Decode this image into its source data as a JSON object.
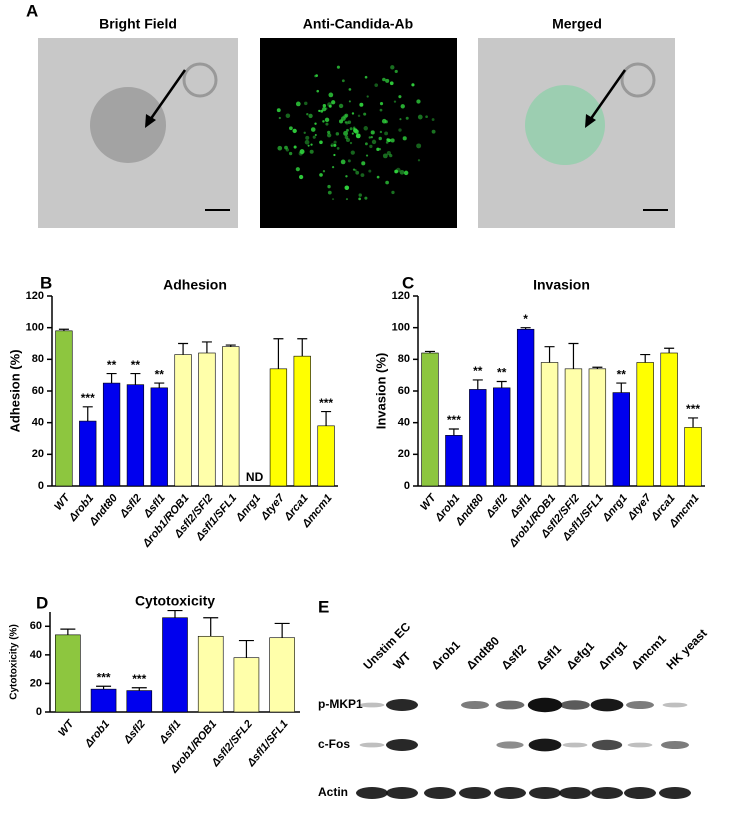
{
  "panels": {
    "A": {
      "label": "A",
      "images": [
        "Bright Field",
        "Anti-Candida-Ab",
        "Merged"
      ]
    },
    "E": {
      "label": "E",
      "columns": [
        "Unstim EC",
        "WT",
        "Δrob1",
        "Δndt80",
        "Δsfl2",
        "Δsfl1",
        "Δefg1",
        "Δnrg1",
        "Δmcm1",
        "HK yeast"
      ],
      "rows": [
        "p-MKP1",
        "c-Fos",
        "Actin"
      ]
    }
  },
  "chart_data": [
    {
      "panel": "B",
      "type": "bar",
      "title": "Adhesion",
      "y_label": "Adhesion (%)",
      "categories": [
        "WT",
        "Δrob1",
        "Δndt80",
        "Δsfl2",
        "Δsfl1",
        "Δrob1/ROB1",
        "Δsfl2/SFl2",
        "Δsfl1/SFL1",
        "Δnrg1",
        "Δtye7",
        "Δrca1",
        "Δmcm1"
      ],
      "values": [
        98,
        41,
        65,
        64,
        62,
        83,
        84,
        88,
        null,
        74,
        82,
        38
      ],
      "errors": [
        1,
        9,
        6,
        7,
        3,
        7,
        7,
        1,
        null,
        19,
        11,
        9
      ],
      "colors": [
        "#8dc63f",
        "#0000ee",
        "#0000ee",
        "#0000ee",
        "#0000ee",
        "#ffffaa",
        "#ffffaa",
        "#ffffaa",
        null,
        "#ffff00",
        "#ffff00",
        "#ffff00"
      ],
      "annotations": [
        null,
        "***",
        "**",
        "**",
        "**",
        null,
        null,
        null,
        "ND",
        null,
        null,
        "***"
      ],
      "ylim": [
        0,
        120
      ],
      "yticks": [
        0,
        20,
        40,
        60,
        80,
        100,
        120
      ]
    },
    {
      "panel": "C",
      "type": "bar",
      "title": "Invasion",
      "y_label": "Invasion (%)",
      "categories": [
        "WT",
        "Δrob1",
        "Δndt80",
        "Δsfl2",
        "Δsfl1",
        "Δrob1/ROB1",
        "Δsfl2/SFl2",
        "Δsfl1/SFL1",
        "Δnrg1",
        "Δtye7",
        "Δrca1",
        "Δmcm1"
      ],
      "values": [
        84,
        32,
        61,
        62,
        99,
        78,
        74,
        74,
        59,
        78,
        84,
        37
      ],
      "errors": [
        1,
        4,
        6,
        4,
        1,
        10,
        16,
        1,
        6,
        5,
        3,
        6
      ],
      "colors": [
        "#8dc63f",
        "#0000ee",
        "#0000ee",
        "#0000ee",
        "#0000ee",
        "#ffffaa",
        "#ffffaa",
        "#ffffaa",
        "#0000ee",
        "#ffff00",
        "#ffff00",
        "#ffff00"
      ],
      "annotations": [
        null,
        "***",
        "**",
        "**",
        "*",
        null,
        null,
        null,
        "**",
        null,
        null,
        "***"
      ],
      "ylim": [
        0,
        120
      ],
      "yticks": [
        0,
        20,
        40,
        60,
        80,
        100,
        120
      ]
    },
    {
      "panel": "D",
      "type": "bar",
      "title": "Cytotoxicity",
      "y_label": "Cytotoxicity (%)",
      "categories": [
        "WT",
        "Δrob1",
        "Δsfl2",
        "Δsfl1",
        "Δrob1/ROB1",
        "Δsfl2/SFL2",
        "Δsfl1/SFL1"
      ],
      "values": [
        54,
        16,
        15,
        66,
        53,
        38,
        52
      ],
      "errors": [
        4,
        2,
        2,
        5,
        13,
        12,
        10
      ],
      "colors": [
        "#8dc63f",
        "#0000ee",
        "#0000ee",
        "#0000ee",
        "#ffffaa",
        "#ffffaa",
        "#ffffaa"
      ],
      "annotations": [
        null,
        "***",
        "***",
        null,
        null,
        null,
        null
      ],
      "ylim": [
        0,
        70
      ],
      "yticks": [
        0,
        20,
        40,
        60
      ]
    }
  ]
}
